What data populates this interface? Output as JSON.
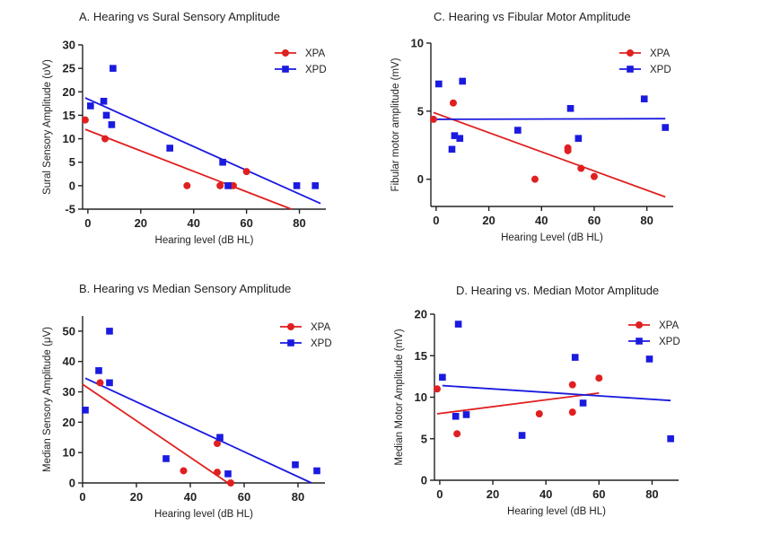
{
  "chart_data": [
    {
      "id": "A",
      "type": "scatter",
      "title": "A. Hearing vs Sural Sensory Amplitude",
      "xlabel": "Hearing level (dB HL)",
      "ylabel": "Sural Sensory Amplitude (υV)",
      "xlim": [
        -2,
        90
      ],
      "ylim": [
        -5,
        30
      ],
      "xticks": [
        0,
        20,
        40,
        60,
        80
      ],
      "yticks": [
        -5,
        0,
        5,
        10,
        15,
        20,
        25,
        30
      ],
      "legend_position": "top-right",
      "series": [
        {
          "name": "XPA",
          "color": "#e02020",
          "marker": "circle",
          "points": [
            [
              -1,
              14
            ],
            [
              6.5,
              10
            ],
            [
              37.5,
              0
            ],
            [
              50,
              0
            ],
            [
              54,
              0
            ],
            [
              55,
              0
            ],
            [
              60,
              3
            ]
          ],
          "fit": [
            [
              -1,
              12
            ],
            [
              77,
              -5
            ]
          ]
        },
        {
          "name": "XPD",
          "color": "#1a1ae0",
          "marker": "square",
          "points": [
            [
              1,
              17
            ],
            [
              6,
              18
            ],
            [
              7,
              15
            ],
            [
              9,
              13
            ],
            [
              9.5,
              25
            ],
            [
              31,
              8
            ],
            [
              51,
              5
            ],
            [
              53,
              0
            ],
            [
              79,
              0
            ],
            [
              86,
              0
            ]
          ],
          "fit": [
            [
              -1,
              18.7
            ],
            [
              88,
              -3.8
            ]
          ]
        }
      ]
    },
    {
      "id": "C",
      "type": "scatter",
      "title": "C. Hearing vs Fibular Motor Amplitude",
      "xlabel": "Hearing Level (dB HL)",
      "ylabel": "Fibular motor amplitude (mV)",
      "xlim": [
        -2,
        90
      ],
      "ylim": [
        -2,
        10
      ],
      "xticks": [
        0,
        20,
        40,
        60,
        80
      ],
      "yticks": [
        0,
        5,
        10
      ],
      "legend_position": "top-right",
      "series": [
        {
          "name": "XPA",
          "color": "#e02020",
          "marker": "circle",
          "points": [
            [
              -1,
              4.4
            ],
            [
              6.5,
              5.6
            ],
            [
              37.5,
              0
            ],
            [
              50,
              2.1
            ],
            [
              50,
              2.3
            ],
            [
              55,
              0.8
            ],
            [
              60,
              0.2
            ]
          ],
          "fit": [
            [
              -1,
              4.9
            ],
            [
              87,
              -1.3
            ]
          ]
        },
        {
          "name": "XPD",
          "color": "#1a1ae0",
          "marker": "square",
          "points": [
            [
              1,
              7.0
            ],
            [
              6,
              2.2
            ],
            [
              7,
              3.2
            ],
            [
              9,
              3.0
            ],
            [
              10,
              7.2
            ],
            [
              31,
              3.6
            ],
            [
              51,
              5.2
            ],
            [
              54,
              3.0
            ],
            [
              79,
              5.9
            ],
            [
              87,
              3.8
            ]
          ],
          "fit": [
            [
              -1,
              4.4
            ],
            [
              87,
              4.45
            ]
          ]
        }
      ]
    },
    {
      "id": "B",
      "type": "scatter",
      "title": "B. Hearing vs Median Sensory Amplitude",
      "xlabel": "Hearing level (dB HL)",
      "ylabel": "Median Sensory Amplitude (μV)",
      "xlim": [
        0,
        90
      ],
      "ylim": [
        0,
        55
      ],
      "xticks": [
        0,
        20,
        40,
        60,
        80
      ],
      "yticks": [
        0,
        10,
        20,
        30,
        40,
        50
      ],
      "legend_position": "top-right",
      "series": [
        {
          "name": "XPA",
          "color": "#e02020",
          "marker": "circle",
          "points": [
            [
              6.5,
              33
            ],
            [
              37.5,
              4
            ],
            [
              50,
              13
            ],
            [
              50,
              3.5
            ],
            [
              55,
              0
            ]
          ],
          "fit": [
            [
              0,
              32.5
            ],
            [
              54,
              0
            ]
          ]
        },
        {
          "name": "XPD",
          "color": "#1a1ae0",
          "marker": "square",
          "points": [
            [
              1,
              24
            ],
            [
              6,
              37
            ],
            [
              10,
              33
            ],
            [
              10,
              50
            ],
            [
              31,
              8
            ],
            [
              51,
              15
            ],
            [
              54,
              3
            ],
            [
              79,
              6
            ],
            [
              87,
              4
            ]
          ],
          "fit": [
            [
              1,
              34.5
            ],
            [
              85,
              0
            ]
          ]
        }
      ]
    },
    {
      "id": "D",
      "type": "scatter",
      "title": "D.  Hearing vs. Median Motor Amplitude",
      "xlabel": "Hearing level (dB HL)",
      "ylabel": "Median Motor Amplitude (mV)",
      "xlim": [
        -2,
        90
      ],
      "ylim": [
        0,
        20
      ],
      "xticks": [
        0,
        20,
        40,
        60,
        80
      ],
      "yticks": [
        0,
        5,
        10,
        15,
        20
      ],
      "legend_position": "top-right",
      "series": [
        {
          "name": "XPA",
          "color": "#e02020",
          "marker": "circle",
          "points": [
            [
              -1,
              11
            ],
            [
              6.5,
              5.6
            ],
            [
              37.5,
              8
            ],
            [
              50,
              11.5
            ],
            [
              50,
              8.2
            ],
            [
              60,
              12.3
            ]
          ],
          "fit": [
            [
              -1,
              8
            ],
            [
              60,
              10.5
            ]
          ]
        },
        {
          "name": "XPD",
          "color": "#1a1ae0",
          "marker": "square",
          "points": [
            [
              1,
              12.4
            ],
            [
              6,
              7.7
            ],
            [
              7,
              18.8
            ],
            [
              10,
              7.9
            ],
            [
              31,
              5.4
            ],
            [
              51,
              14.8
            ],
            [
              54,
              9.3
            ],
            [
              79,
              14.6
            ],
            [
              87,
              5
            ]
          ],
          "fit": [
            [
              1,
              11.4
            ],
            [
              87,
              9.6
            ]
          ]
        }
      ]
    }
  ]
}
